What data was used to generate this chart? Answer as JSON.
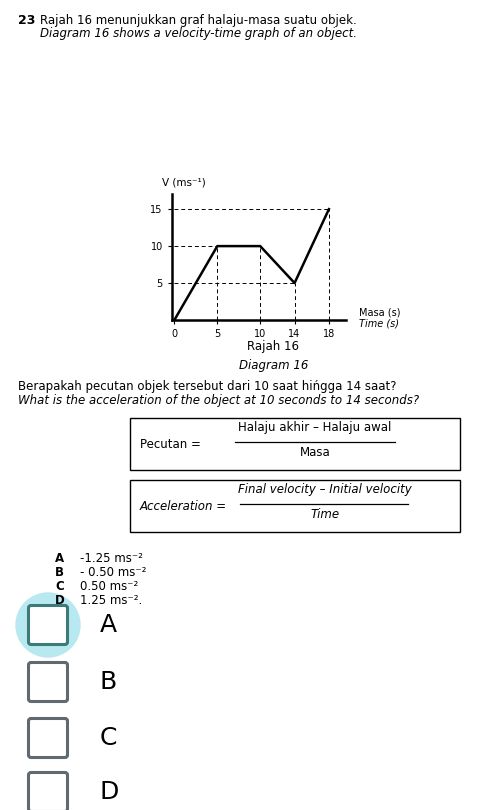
{
  "question_number": "23",
  "question_text_line1": "Rajah 16 menunjukkan graf halaju-masa suatu objek.",
  "question_text_line2": "Diagram 16 shows a velocity-time graph of an object.",
  "graph_ylabel": "V (ms⁻¹)",
  "graph_xlabel1": "Masa (s)",
  "graph_xlabel2": "Time (s)",
  "graph_caption1": "Rajah 16",
  "graph_caption2": "Diagram 16",
  "graph_x": [
    0,
    5,
    10,
    14,
    18
  ],
  "graph_y": [
    0,
    10,
    10,
    5,
    15
  ],
  "question_body1": "Berapakah pecutan objek tersebut dari 10 saat hińgga 14 saat?",
  "question_body2": "What is the acceleration of the object at 10 seconds to 14 seconds?",
  "formula_box1_left": "Pecutan = ",
  "formula_box1_num": "Halaju akhir – Halaju awal",
  "formula_box1_den": "Masa",
  "formula_box2_left": "Acceleration = ",
  "formula_box2_num": "Final velocity – Initial velocity",
  "formula_box2_den": "Time",
  "options": [
    {
      "label": "A",
      "text": "-1.25 ms⁻²"
    },
    {
      "label": "B",
      "text": "- 0.50 ms⁻²"
    },
    {
      "label": "C",
      "text": "0.50 ms⁻²"
    },
    {
      "label": "D",
      "text": "1.25 ms⁻²."
    }
  ],
  "answer_labels": [
    "A",
    "B",
    "C",
    "D"
  ],
  "selected_answer": "A",
  "circle_color": "#b8e8f0",
  "box_stroke_selected": "#3d7a7a",
  "box_stroke_normal": "#606870"
}
